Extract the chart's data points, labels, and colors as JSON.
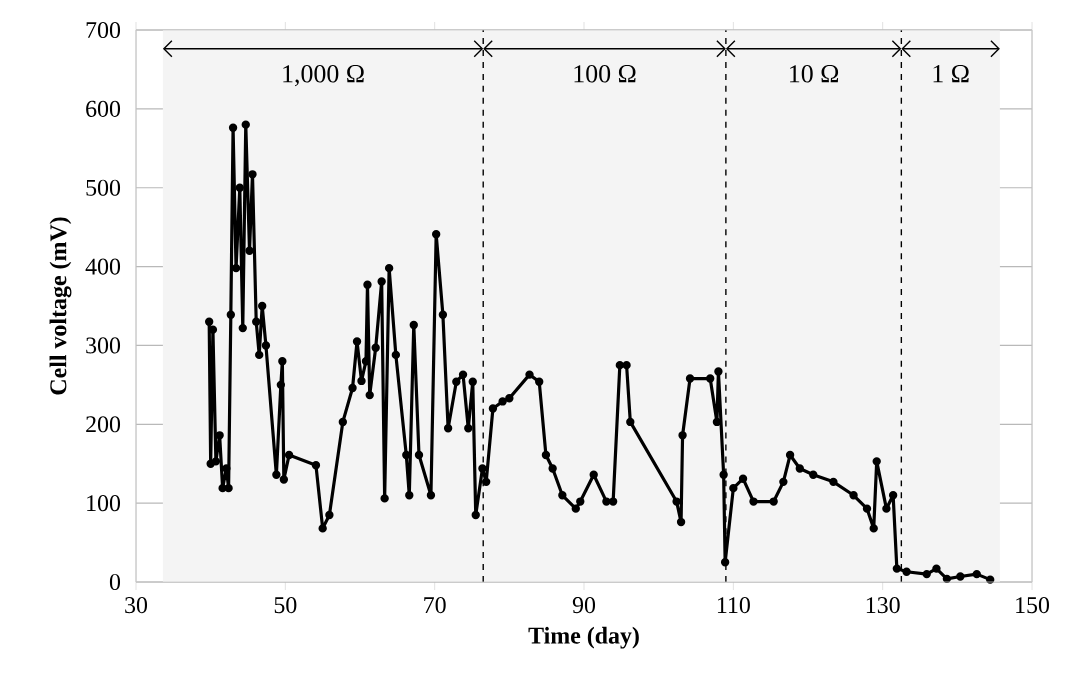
{
  "chart_data": {
    "type": "line",
    "xlabel": "Time (day)",
    "ylabel": "Cell voltage (mV)",
    "xlim": [
      30,
      150
    ],
    "xticks": [
      30,
      50,
      70,
      90,
      110,
      130,
      150
    ],
    "ylim": [
      0,
      700
    ],
    "yticks": [
      0,
      100,
      200,
      300,
      400,
      500,
      600,
      700
    ],
    "grid": "y",
    "marker": "circle",
    "line_style": "solid",
    "series": [
      {
        "color": "#000000",
        "x": [
          39.8,
          40.0,
          40.3,
          40.7,
          41.2,
          41.6,
          42.1,
          42.4,
          42.7,
          43.0,
          43.4,
          43.9,
          44.3,
          44.7,
          45.2,
          45.6,
          46.1,
          46.5,
          46.9,
          47.4,
          48.8,
          49.4,
          49.6,
          49.8,
          50.5,
          54.1,
          55.0,
          55.9,
          57.7,
          59.0,
          59.6,
          60.2,
          60.8,
          61.0,
          61.3,
          62.1,
          62.9,
          63.3,
          63.9,
          64.8,
          66.2,
          66.6,
          67.2,
          67.9,
          69.5,
          70.2,
          71.1,
          71.8,
          72.9,
          73.8,
          74.5,
          75.1,
          75.5,
          76.4,
          76.9,
          77.8,
          79.1,
          80.0,
          82.7,
          84.0,
          84.9,
          85.8,
          87.1,
          88.9,
          89.5,
          91.3,
          93.0,
          93.9,
          94.8,
          95.7,
          96.2,
          102.4,
          103.0,
          103.2,
          104.2,
          106.9,
          107.8,
          108.0,
          108.7,
          108.9,
          110.0,
          111.3,
          112.7,
          115.4,
          116.7,
          117.6,
          118.9,
          120.7,
          123.4,
          126.1,
          127.9,
          128.8,
          129.2,
          130.5,
          131.4,
          131.9,
          133.2,
          135.9,
          137.2,
          138.6,
          140.4,
          142.6,
          144.4
        ],
        "values": [
          330,
          150,
          320,
          153,
          186,
          119,
          144,
          119,
          339,
          576,
          398,
          500,
          322,
          580,
          420,
          517,
          330,
          288,
          350,
          300,
          136,
          250,
          280,
          130,
          161,
          148,
          68,
          85,
          203,
          246,
          305,
          255,
          280,
          377,
          237,
          297,
          381,
          106,
          398,
          288,
          161,
          110,
          326,
          161,
          110,
          441,
          339,
          195,
          254,
          263,
          195,
          254,
          85,
          144,
          127,
          220,
          229,
          233,
          263,
          254,
          161,
          144,
          110,
          93,
          102,
          136,
          102,
          102,
          275,
          275,
          203,
          102,
          76,
          186,
          258,
          258,
          203,
          267,
          136,
          25,
          119,
          131,
          102,
          102,
          127,
          161,
          144,
          136,
          127,
          110,
          93,
          68,
          153,
          93,
          110,
          17,
          13,
          10,
          17,
          4,
          7,
          10,
          3
        ]
      }
    ],
    "ref_lines": [
      {
        "axis": "x",
        "value": 76.5,
        "color": "#000000",
        "line_style": "dashed"
      },
      {
        "axis": "x",
        "value": 109,
        "color": "#000000",
        "line_style": "dashed"
      },
      {
        "axis": "x",
        "value": 132.5,
        "color": "#000000",
        "line_style": "dashed"
      }
    ],
    "bands": [
      {
        "axis": "x",
        "from": 33.6,
        "to": 76.5,
        "label": "1,000 Ω",
        "color": "#f4f4f4"
      },
      {
        "axis": "x",
        "from": 76.5,
        "to": 109,
        "label": "100 Ω",
        "color": "#f4f4f4"
      },
      {
        "axis": "x",
        "from": 109,
        "to": 132.5,
        "label": "10 Ω",
        "color": "#f4f4f4"
      },
      {
        "axis": "x",
        "from": 132.5,
        "to": 145.7,
        "label": "1 Ω",
        "color": "#f4f4f4"
      }
    ]
  }
}
